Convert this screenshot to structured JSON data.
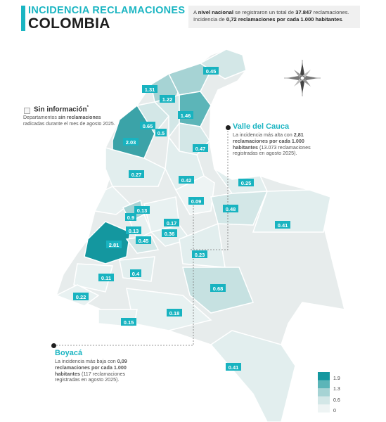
{
  "header": {
    "title_line1": "INCIDENCIA RECLAMACIONES",
    "title_line2": "COLOMBIA"
  },
  "summary": {
    "line1_pre": "A ",
    "line1_bold1": "nivel nacional",
    "line1_mid": " se registraron un total de ",
    "line1_bold2": "37.847",
    "line1_post": " reclamaciones.",
    "line2_pre": "Incidencia de ",
    "line2_bold": "0,72 reclamaciones por cada 1.000 habitantes",
    "line2_post": "."
  },
  "no_info": {
    "title": "Sin información",
    "mark": "*",
    "text_pre": "Departamentos ",
    "text_bold": "sin reclamaciones",
    "text_post": " radicadas durante el mes de agosto 2025."
  },
  "callout_high": {
    "title": "Valle del Cauca",
    "text_pre": "La incidencia más alta con ",
    "text_bold": "2,81 reclamaciones por cada 1.000 habitantes",
    "text_post": " (13.073 reclamaciones registradas en agosto 2025)."
  },
  "callout_low": {
    "title": "Boyacá",
    "text_pre": "La incidencia más baja con ",
    "text_bold": "0,09 reclamaciones por cada 1.000 habitantes",
    "text_post": " (117 reclamaciones registradas en agosto 2025)."
  },
  "legend": {
    "ticks": [
      "1.9",
      "1.3",
      "0.6",
      "0"
    ],
    "colors": [
      "#14979f",
      "#5cb5b8",
      "#a6d3d4",
      "#d3e7e7",
      "#eef4f4"
    ]
  },
  "colors": {
    "accent": "#1bb5c2",
    "badge": "#18b3c0",
    "no_data": "#e7ecec"
  },
  "icons": {
    "compass": "compass-rose-icon"
  },
  "values": [
    {
      "value": "0.45",
      "fill": "#d3e7e7"
    },
    {
      "value": "1.31",
      "fill": "#a6d3d4"
    },
    {
      "value": "1.22",
      "fill": "#a6d3d4"
    },
    {
      "value": "1.46",
      "fill": "#5cb5b8"
    },
    {
      "value": "0.65",
      "fill": "#d3e7e7"
    },
    {
      "value": "0.5",
      "fill": "#d3e7e7"
    },
    {
      "value": "2.03",
      "fill": "#3ba3a8"
    },
    {
      "value": "0.47",
      "fill": "#d3e7e7"
    },
    {
      "value": "0.27",
      "fill": "#e2eeee"
    },
    {
      "value": "0.42",
      "fill": "#e2eeee"
    },
    {
      "value": "0.25",
      "fill": "#e2eeee"
    },
    {
      "value": "0.09",
      "fill": "#eef4f4"
    },
    {
      "value": "0.48",
      "fill": "#d3e7e7"
    },
    {
      "value": "0.13",
      "fill": "#e8f1f1"
    },
    {
      "value": "0.9",
      "fill": "#a6d3d4"
    },
    {
      "value": "0.17",
      "fill": "#e8f1f1"
    },
    {
      "value": "0.41",
      "fill": "#e2eeee"
    },
    {
      "value": "0.13",
      "fill": "#e8f1f1"
    },
    {
      "value": "0.36",
      "fill": "#e2eeee"
    },
    {
      "value": "2.81",
      "fill": "#14979f"
    },
    {
      "value": "0.45",
      "fill": "#d3e7e7"
    },
    {
      "value": "0.23",
      "fill": "#e2eeee"
    },
    {
      "value": "0.4",
      "fill": "#e2eeee"
    },
    {
      "value": "0.11",
      "fill": "#e8f1f1"
    },
    {
      "value": "0.68",
      "fill": "#c6e1e1"
    },
    {
      "value": "0.22",
      "fill": "#e8f1f1"
    },
    {
      "value": "0.18",
      "fill": "#e8f1f1"
    },
    {
      "value": "0.15",
      "fill": "#e8f1f1"
    },
    {
      "value": "0.41",
      "fill": "#e2eeee"
    }
  ]
}
